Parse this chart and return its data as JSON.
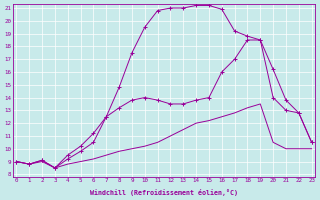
{
  "xlabel": "Windchill (Refroidissement éolien,°C)",
  "bg_color": "#c8eaea",
  "line_color": "#990099",
  "x_min": 0,
  "x_max": 23,
  "y_min": 8,
  "y_max": 21,
  "line_top_x": [
    0,
    1,
    2,
    3,
    4,
    5,
    6,
    7,
    8,
    9,
    10,
    11,
    12,
    13,
    14,
    15,
    16,
    17,
    18,
    19,
    20,
    21,
    22,
    23
  ],
  "line_top_y": [
    9.0,
    8.8,
    9.1,
    8.5,
    9.2,
    9.8,
    10.5,
    12.5,
    14.8,
    17.5,
    19.5,
    20.8,
    21.0,
    21.0,
    21.2,
    21.2,
    20.9,
    19.2,
    18.8,
    18.5,
    16.2,
    13.8,
    12.8,
    10.5
  ],
  "line_mid_x": [
    0,
    1,
    2,
    3,
    4,
    5,
    6,
    7,
    8,
    9,
    10,
    11,
    12,
    13,
    14,
    15,
    16,
    17,
    18,
    19,
    20,
    21,
    22,
    23
  ],
  "line_mid_y": [
    9.0,
    8.8,
    9.1,
    8.5,
    9.5,
    10.2,
    11.2,
    12.5,
    13.2,
    13.8,
    14.0,
    13.8,
    13.5,
    13.5,
    13.8,
    14.0,
    16.0,
    17.0,
    18.5,
    18.5,
    14.0,
    13.0,
    12.8,
    10.5
  ],
  "line_bot_x": [
    0,
    1,
    2,
    3,
    4,
    5,
    6,
    7,
    8,
    9,
    10,
    11,
    12,
    13,
    14,
    15,
    16,
    17,
    18,
    19,
    20,
    21,
    22,
    23
  ],
  "line_bot_y": [
    9.0,
    8.8,
    9.0,
    8.5,
    8.8,
    9.0,
    9.2,
    9.5,
    9.8,
    10.0,
    10.2,
    10.5,
    11.0,
    11.5,
    12.0,
    12.2,
    12.5,
    12.8,
    13.2,
    13.5,
    10.5,
    10.0,
    10.0,
    10.0
  ]
}
